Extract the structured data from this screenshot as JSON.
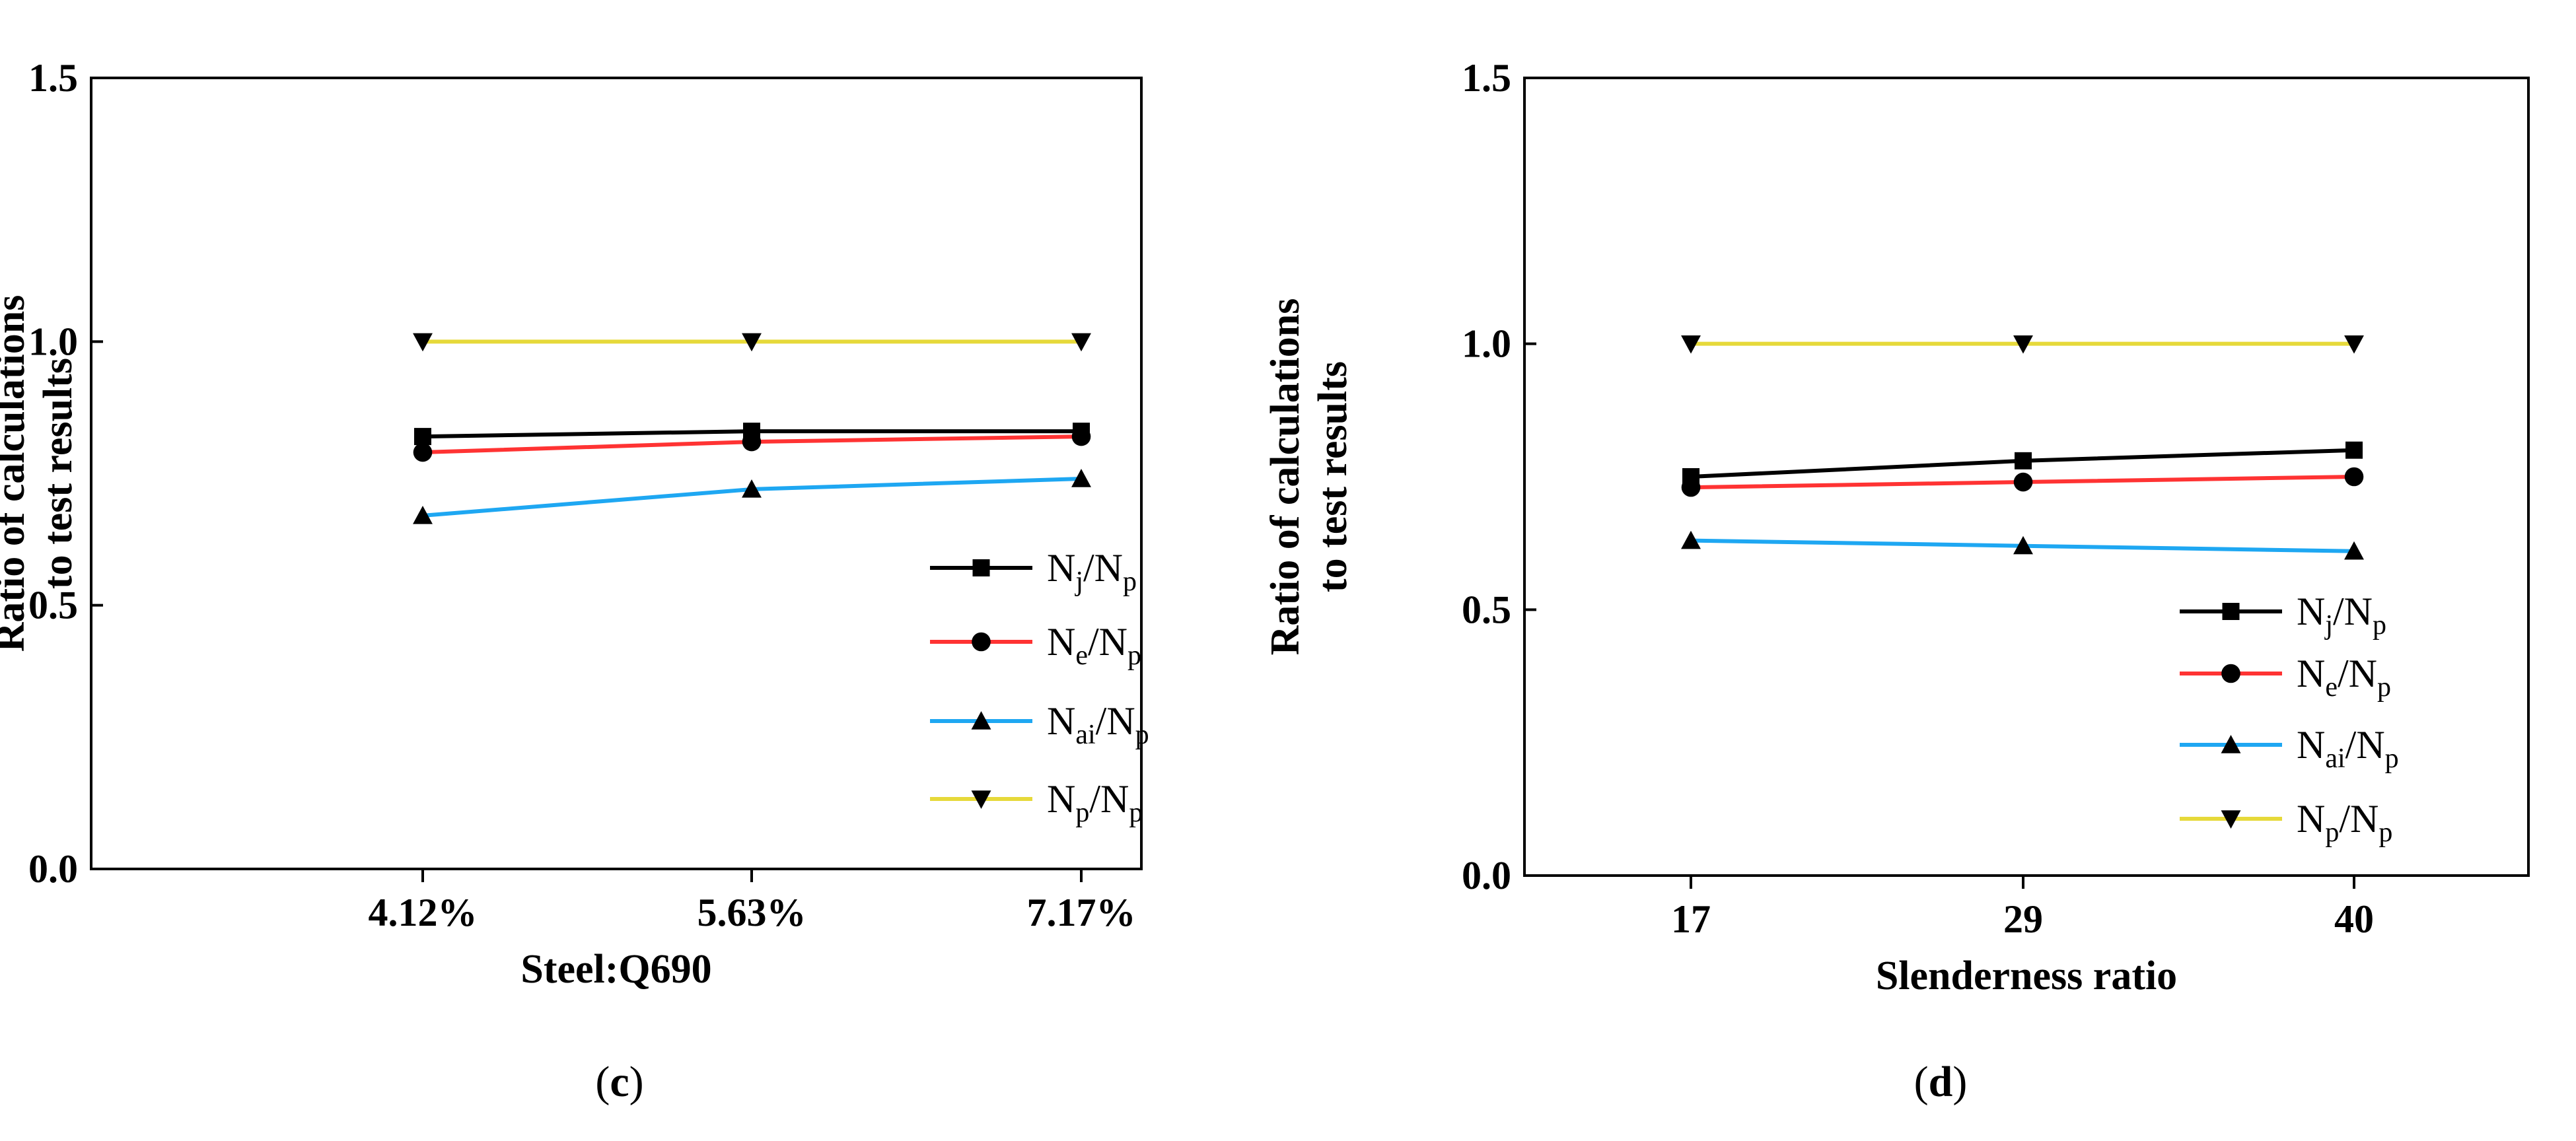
{
  "chart_data": [
    {
      "type": "line",
      "panel_label": "c",
      "title": "",
      "xlabel": "Steel:Q690",
      "ylabel_lines": [
        "Ratio of calculations",
        "to test results"
      ],
      "categories": [
        "4.12%",
        "5.63%",
        "7.17%"
      ],
      "ylim": [
        0,
        1.5
      ],
      "yticks": [
        "0.0",
        "0.5",
        "1.0",
        "1.5"
      ],
      "legend_position": "bottom-right",
      "series": [
        {
          "name": "Nj/Np",
          "main": "N",
          "sub": "j",
          "main2": "/N",
          "sub2": "p",
          "color": "#000000",
          "marker": "square",
          "values": [
            0.82,
            0.83,
            0.83
          ]
        },
        {
          "name": "Ne/Np",
          "main": "N",
          "sub": "e",
          "main2": "/N",
          "sub2": "p",
          "color": "#ff3333",
          "marker": "circle",
          "values": [
            0.79,
            0.81,
            0.82
          ]
        },
        {
          "name": "Nai/Np",
          "main": "N",
          "sub": "ai",
          "main2": "/N",
          "sub2": "p",
          "color": "#1ea7f2",
          "marker": "triangle-up",
          "values": [
            0.67,
            0.72,
            0.74
          ]
        },
        {
          "name": "Np/Np",
          "main": "N",
          "sub": "p",
          "main2": "/N",
          "sub2": "p",
          "color": "#e6d93a",
          "marker": "triangle-down",
          "values": [
            1.0,
            1.0,
            1.0
          ]
        }
      ]
    },
    {
      "type": "line",
      "panel_label": "d",
      "title": "",
      "xlabel": "Slenderness ratio",
      "ylabel_lines": [
        "Ratio of calculations",
        "to test results"
      ],
      "categories": [
        "17",
        "29",
        "40"
      ],
      "ylim": [
        0,
        1.5
      ],
      "yticks": [
        "0.0",
        "0.5",
        "1.0",
        "1.5"
      ],
      "legend_position": "bottom-right",
      "series": [
        {
          "name": "Nj/Np",
          "main": "N",
          "sub": "j",
          "main2": "/N",
          "sub2": "p",
          "color": "#000000",
          "marker": "square",
          "values": [
            0.75,
            0.78,
            0.8
          ]
        },
        {
          "name": "Ne/Np",
          "main": "N",
          "sub": "e",
          "main2": "/N",
          "sub2": "p",
          "color": "#ff3333",
          "marker": "circle",
          "values": [
            0.73,
            0.74,
            0.75
          ]
        },
        {
          "name": "Nai/Np",
          "main": "N",
          "sub": "ai",
          "main2": "/N",
          "sub2": "p",
          "color": "#1ea7f2",
          "marker": "triangle-up",
          "values": [
            0.63,
            0.62,
            0.61
          ]
        },
        {
          "name": "Np/Np",
          "main": "N",
          "sub": "p",
          "main2": "/N",
          "sub2": "p",
          "color": "#e6d93a",
          "marker": "triangle-down",
          "values": [
            1.0,
            1.0,
            1.0
          ]
        }
      ]
    }
  ]
}
